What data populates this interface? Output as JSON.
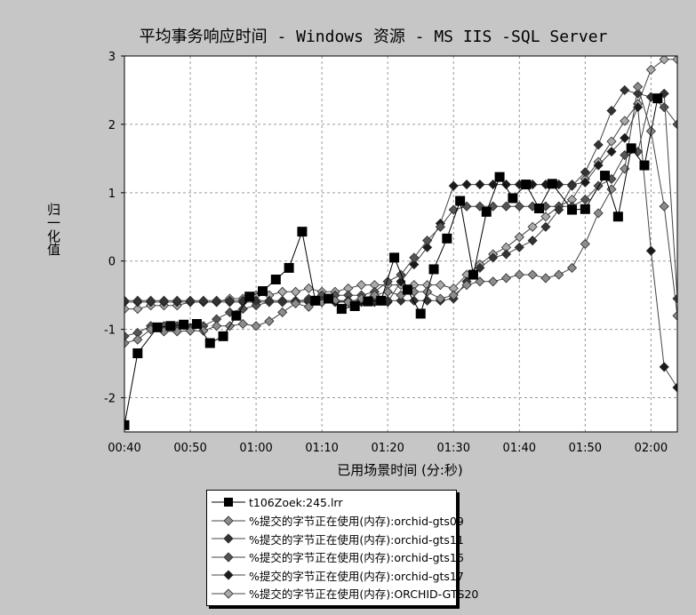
{
  "chart_data": {
    "type": "line",
    "title": "平均事务响应时间 - Windows 资源 - MS IIS -SQL Server",
    "xlabel": "已用场景时间 (分:秒)",
    "ylabel": "归一化值",
    "xlim": [
      "00:40",
      "02:04"
    ],
    "ylim": [
      -2.5,
      3
    ],
    "x_ticks": [
      "00:40",
      "00:50",
      "01:00",
      "01:10",
      "01:20",
      "01:30",
      "01:40",
      "01:50",
      "02:00"
    ],
    "y_ticks": [
      "-2",
      "-1",
      "0",
      "1",
      "2",
      "3"
    ],
    "grid": true,
    "legend_position": "bottom",
    "series": [
      {
        "name": "t106Zoek:245.lrr",
        "color": "#000000",
        "marker": "square",
        "x": [
          "00:40",
          "00:42",
          "00:45",
          "00:47",
          "00:49",
          "00:51",
          "00:53",
          "00:55",
          "00:57",
          "00:59",
          "01:01",
          "01:03",
          "01:05",
          "01:07",
          "01:09",
          "01:11",
          "01:13",
          "01:15",
          "01:17",
          "01:19",
          "01:21",
          "01:23",
          "01:25",
          "01:27",
          "01:29",
          "01:31",
          "01:33",
          "01:35",
          "01:37",
          "01:39",
          "01:41",
          "01:43",
          "01:45",
          "01:48",
          "01:50",
          "01:53",
          "01:55",
          "01:57",
          "01:59",
          "02:01"
        ],
        "values": [
          -2.4,
          -1.35,
          -0.97,
          -0.95,
          -0.93,
          -0.92,
          -1.2,
          -1.1,
          -0.8,
          -0.52,
          -0.44,
          -0.27,
          -0.1,
          0.43,
          -0.58,
          -0.55,
          -0.7,
          -0.66,
          -0.59,
          -0.58,
          0.05,
          -0.42,
          -0.77,
          -0.12,
          0.33,
          0.88,
          -0.2,
          0.72,
          1.23,
          0.92,
          1.12,
          0.77,
          1.13,
          0.75,
          0.76,
          1.25,
          0.65,
          1.65,
          1.4,
          2.38
        ]
      },
      {
        "name": "%提交的字节正在使用(内存):orchid-gts09",
        "color": "#8c8c8c",
        "marker": "diamond",
        "x": [
          "00:40",
          "00:42",
          "00:44",
          "00:46",
          "00:48",
          "00:50",
          "00:52",
          "00:54",
          "00:56",
          "00:58",
          "01:00",
          "01:02",
          "01:04",
          "01:06",
          "01:08",
          "01:10",
          "01:12",
          "01:14",
          "01:16",
          "01:18",
          "01:20",
          "01:22",
          "01:24",
          "01:26",
          "01:28",
          "01:30",
          "01:32",
          "01:34",
          "01:36",
          "01:38",
          "01:40",
          "01:42",
          "01:44",
          "01:46",
          "01:48",
          "01:50",
          "01:52",
          "01:54",
          "01:56",
          "01:58",
          "02:00",
          "02:02",
          "02:04"
        ],
        "values": [
          -1.2,
          -1.15,
          -1.0,
          -1.03,
          -1.03,
          -1.02,
          -1.02,
          -0.95,
          -0.95,
          -0.92,
          -0.95,
          -0.88,
          -0.75,
          -0.62,
          -0.67,
          -0.6,
          -0.58,
          -0.6,
          -0.55,
          -0.5,
          -0.45,
          -0.5,
          -0.45,
          -0.45,
          -0.55,
          -0.5,
          -0.35,
          -0.3,
          -0.3,
          -0.25,
          -0.2,
          -0.2,
          -0.25,
          -0.2,
          -0.1,
          0.25,
          0.7,
          1.05,
          1.35,
          2.55,
          1.9,
          0.8,
          -0.8
        ]
      },
      {
        "name": "%提交的字节正在使用(内存):orchid-gts11",
        "color": "#333333",
        "marker": "diamond",
        "x": [
          "00:40",
          "00:42",
          "00:44",
          "00:46",
          "00:48",
          "00:50",
          "00:52",
          "00:54",
          "00:56",
          "00:58",
          "01:00",
          "01:02",
          "01:04",
          "01:06",
          "01:08",
          "01:10",
          "01:12",
          "01:14",
          "01:16",
          "01:18",
          "01:20",
          "01:22",
          "01:24",
          "01:26",
          "01:28",
          "01:30",
          "01:32",
          "01:34",
          "01:36",
          "01:38",
          "01:40",
          "01:42",
          "01:44",
          "01:46",
          "01:48",
          "01:50",
          "01:52",
          "01:54",
          "01:56",
          "01:58",
          "02:00",
          "02:02",
          "02:04"
        ],
        "values": [
          -0.58,
          -0.58,
          -0.58,
          -0.58,
          -0.58,
          -0.58,
          -0.58,
          -0.58,
          -0.58,
          -0.58,
          -0.58,
          -0.58,
          -0.58,
          -0.58,
          -0.58,
          -0.58,
          -0.58,
          -0.58,
          -0.58,
          -0.58,
          -0.58,
          -0.58,
          -0.58,
          -0.58,
          -0.58,
          -0.55,
          -0.3,
          -0.1,
          0.05,
          0.1,
          0.2,
          0.3,
          0.5,
          0.75,
          1.1,
          1.3,
          1.7,
          2.2,
          2.5,
          2.45,
          2.4,
          2.45,
          -0.55
        ]
      },
      {
        "name": "%提交的字节正在使用(内存):orchid-gts16",
        "color": "#555555",
        "marker": "diamond",
        "x": [
          "00:40",
          "00:42",
          "00:44",
          "00:46",
          "00:48",
          "00:50",
          "00:52",
          "00:54",
          "00:56",
          "00:58",
          "01:00",
          "01:02",
          "01:04",
          "01:06",
          "01:08",
          "01:10",
          "01:12",
          "01:14",
          "01:16",
          "01:18",
          "01:20",
          "01:22",
          "01:24",
          "01:26",
          "01:28",
          "01:30",
          "01:32",
          "01:34",
          "01:36",
          "01:38",
          "01:40",
          "01:42",
          "01:44",
          "01:46",
          "01:48",
          "01:50",
          "01:52",
          "01:54",
          "01:56",
          "01:58",
          "02:00",
          "02:02",
          "02:04"
        ],
        "values": [
          -1.1,
          -1.05,
          -0.95,
          -0.95,
          -0.95,
          -0.98,
          -0.95,
          -0.85,
          -0.75,
          -0.7,
          -0.65,
          -0.6,
          -0.6,
          -0.6,
          -0.55,
          -0.5,
          -0.5,
          -0.5,
          -0.5,
          -0.45,
          -0.3,
          -0.2,
          0.05,
          0.3,
          0.5,
          0.75,
          0.8,
          0.8,
          0.8,
          0.8,
          0.8,
          0.8,
          0.8,
          0.8,
          0.8,
          0.9,
          1.1,
          1.2,
          1.55,
          1.6,
          2.4,
          2.25,
          2.0
        ]
      },
      {
        "name": "%提交的字节正在使用(内存):orchid-gts17",
        "color": "#1a1a1a",
        "marker": "diamond",
        "x": [
          "00:40",
          "00:42",
          "00:44",
          "00:46",
          "00:48",
          "00:50",
          "00:52",
          "00:54",
          "00:56",
          "00:58",
          "01:00",
          "01:02",
          "01:04",
          "01:06",
          "01:08",
          "01:10",
          "01:12",
          "01:14",
          "01:16",
          "01:18",
          "01:20",
          "01:22",
          "01:24",
          "01:26",
          "01:28",
          "01:30",
          "01:32",
          "01:34",
          "01:36",
          "01:38",
          "01:40",
          "01:42",
          "01:44",
          "01:46",
          "01:48",
          "01:50",
          "01:52",
          "01:54",
          "01:56",
          "01:58",
          "02:00",
          "02:02",
          "02:04"
        ],
        "values": [
          -0.6,
          -0.6,
          -0.6,
          -0.6,
          -0.6,
          -0.6,
          -0.6,
          -0.6,
          -0.6,
          -0.6,
          -0.6,
          -0.6,
          -0.6,
          -0.6,
          -0.6,
          -0.6,
          -0.6,
          -0.6,
          -0.6,
          -0.6,
          -0.6,
          -0.3,
          -0.05,
          0.2,
          0.55,
          1.1,
          1.12,
          1.12,
          1.12,
          1.12,
          1.12,
          1.12,
          1.12,
          1.12,
          1.12,
          1.15,
          1.4,
          1.6,
          1.8,
          2.25,
          0.15,
          -1.55,
          -1.85
        ]
      },
      {
        "name": "%提交的字节正在使用(内存):ORCHID-GTS20",
        "color": "#aaaaaa",
        "marker": "diamond",
        "x": [
          "00:40",
          "00:42",
          "00:44",
          "00:46",
          "00:48",
          "00:50",
          "00:52",
          "00:54",
          "00:56",
          "00:58",
          "01:00",
          "01:02",
          "01:04",
          "01:06",
          "01:08",
          "01:10",
          "01:12",
          "01:14",
          "01:16",
          "01:18",
          "01:20",
          "01:22",
          "01:24",
          "01:26",
          "01:28",
          "01:30",
          "01:32",
          "01:34",
          "01:36",
          "01:38",
          "01:40",
          "01:42",
          "01:44",
          "01:46",
          "01:48",
          "01:50",
          "01:52",
          "01:54",
          "01:56",
          "01:58",
          "02:00",
          "02:02",
          "02:04"
        ],
        "values": [
          -0.7,
          -0.7,
          -0.65,
          -0.65,
          -0.65,
          -0.6,
          -0.6,
          -0.6,
          -0.55,
          -0.55,
          -0.5,
          -0.5,
          -0.45,
          -0.45,
          -0.4,
          -0.45,
          -0.45,
          -0.4,
          -0.35,
          -0.35,
          -0.35,
          -0.35,
          -0.35,
          -0.35,
          -0.35,
          -0.4,
          -0.2,
          -0.05,
          0.1,
          0.2,
          0.35,
          0.5,
          0.65,
          0.8,
          0.9,
          1.2,
          1.45,
          1.75,
          2.05,
          2.3,
          2.8,
          2.95,
          2.95
        ]
      }
    ]
  },
  "legend": {
    "entries": [
      "t106Zoek:245.lrr",
      "%提交的字节正在使用(内存):orchid-gts09",
      "%提交的字节正在使用(内存):orchid-gts11",
      "%提交的字节正在使用(内存):orchid-gts16",
      "%提交的字节正在使用(内存):orchid-gts17",
      "%提交的字节正在使用(内存):ORCHID-GTS20"
    ]
  }
}
